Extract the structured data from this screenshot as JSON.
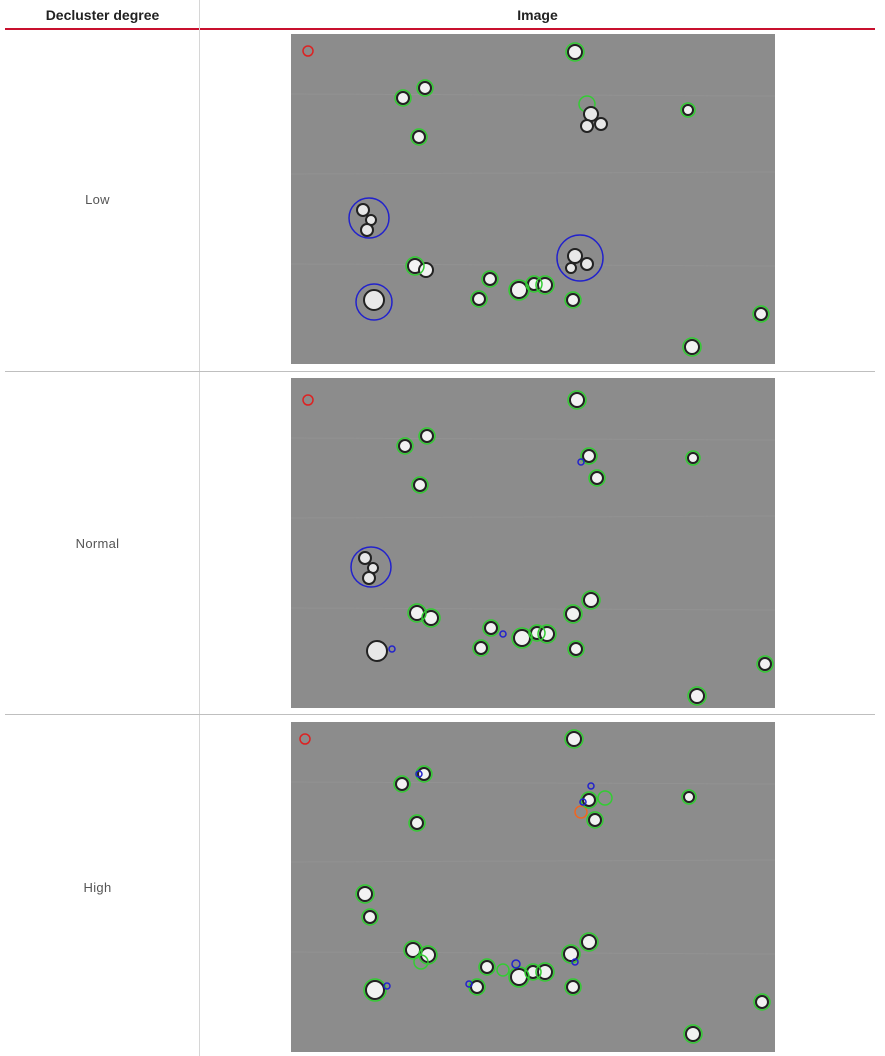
{
  "header": {
    "col1": "Decluster degree",
    "col2": "Image"
  },
  "rows": [
    {
      "label": "Low"
    },
    {
      "label": "Normal"
    },
    {
      "label": "High"
    }
  ],
  "colors": {
    "accent_rule": "#c8102e",
    "single_cell_circle": "#33cc33",
    "cluster_circle": "#2222cc",
    "flag_circle": "#dd2222"
  }
}
